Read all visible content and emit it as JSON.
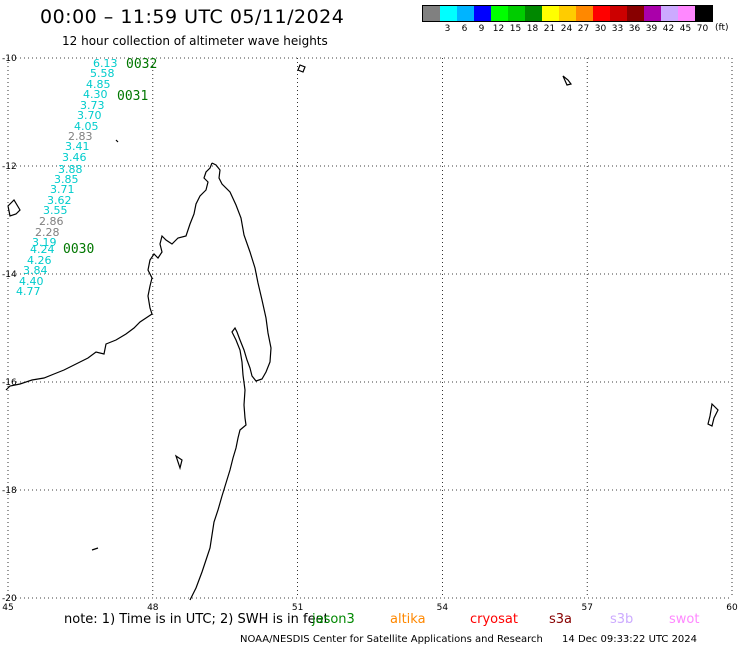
{
  "title": "00:00 – 11:59 UTC 05/11/2024",
  "subtitle": "12 hour collection of altimeter wave heights",
  "legend": {
    "colors": [
      "#808080",
      "#00ffff",
      "#00b4ff",
      "#0000ff",
      "#00ff00",
      "#00cc00",
      "#008800",
      "#ffff00",
      "#ffcc00",
      "#ff8800",
      "#ff0000",
      "#cc0000",
      "#880000",
      "#aa00aa",
      "#ccaaff",
      "#ff88ff",
      "#000000"
    ],
    "labels": [
      "",
      "3",
      "6",
      "9",
      "12",
      "15",
      "18",
      "21",
      "24",
      "27",
      "30",
      "33",
      "36",
      "39",
      "42",
      "45",
      "70"
    ],
    "units": "(ft)"
  },
  "axes": {
    "lat_labels": [
      "-10",
      "-12",
      "-14",
      "-16",
      "-18",
      "-20"
    ],
    "lon_labels": [
      "45",
      "48",
      "51",
      "54",
      "57",
      "60"
    ]
  },
  "swh_points": [
    {
      "value": "6.13",
      "color": "#00cccc"
    },
    {
      "value": "5.58",
      "color": "#00cccc"
    },
    {
      "value": "4.85",
      "color": "#00cccc"
    },
    {
      "value": "4.30",
      "color": "#00cccc"
    },
    {
      "value": "3.73",
      "color": "#00cccc"
    },
    {
      "value": "3.70",
      "color": "#00cccc"
    },
    {
      "value": "4.05",
      "color": "#00cccc"
    },
    {
      "value": "2.83",
      "color": "#808080"
    },
    {
      "value": "3.41",
      "color": "#00cccc"
    },
    {
      "value": "3.46",
      "color": "#00cccc"
    },
    {
      "value": "3.88",
      "color": "#00cccc"
    },
    {
      "value": "3.85",
      "color": "#00cccc"
    },
    {
      "value": "3.71",
      "color": "#00cccc"
    },
    {
      "value": "3.62",
      "color": "#00cccc"
    },
    {
      "value": "3.55",
      "color": "#00cccc"
    },
    {
      "value": "2.86",
      "color": "#808080"
    },
    {
      "value": "2.28",
      "color": "#808080"
    },
    {
      "value": "3.19",
      "color": "#00cccc"
    },
    {
      "value": "4.24",
      "color": "#00cccc"
    },
    {
      "value": "4.26",
      "color": "#00cccc"
    },
    {
      "value": "3.84",
      "color": "#00cccc"
    },
    {
      "value": "4.40",
      "color": "#00cccc"
    },
    {
      "value": "4.77",
      "color": "#00cccc"
    }
  ],
  "time_labels": [
    "0032",
    "0031",
    "0030"
  ],
  "note": "note: 1) Time is in UTC; 2) SWH is in feet",
  "missions": [
    {
      "name": "jason3",
      "color": "#008800"
    },
    {
      "name": "altika",
      "color": "#ff8800"
    },
    {
      "name": "cryosat",
      "color": "#ff0000"
    },
    {
      "name": "s3a",
      "color": "#880000"
    },
    {
      "name": "s3b",
      "color": "#ccaaff"
    },
    {
      "name": "swot",
      "color": "#ff88ff"
    }
  ],
  "footer": {
    "credit": "NOAA/NESDIS Center for Satellite Applications and Research",
    "timestamp": "14 Dec 09:33:22 UTC 2024"
  }
}
